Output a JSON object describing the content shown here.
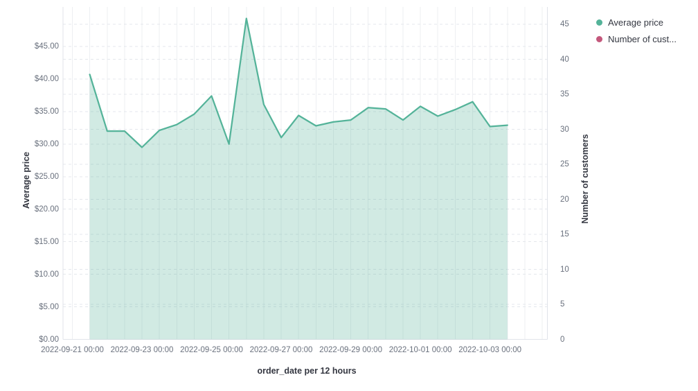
{
  "chart_data": {
    "type": "area",
    "title": "",
    "x": [
      "2022-09-21 12:00",
      "2022-09-22 00:00",
      "2022-09-22 12:00",
      "2022-09-23 00:00",
      "2022-09-23 12:00",
      "2022-09-24 00:00",
      "2022-09-24 12:00",
      "2022-09-25 00:00",
      "2022-09-25 12:00",
      "2022-09-26 00:00",
      "2022-09-26 12:00",
      "2022-09-27 00:00",
      "2022-09-27 12:00",
      "2022-09-28 00:00",
      "2022-09-28 12:00",
      "2022-09-29 00:00",
      "2022-09-29 12:00",
      "2022-09-30 00:00",
      "2022-09-30 12:00",
      "2022-10-01 00:00",
      "2022-10-01 12:00",
      "2022-10-02 00:00",
      "2022-10-02 12:00",
      "2022-10-03 00:00",
      "2022-10-03 12:00"
    ],
    "series": [
      {
        "name": "Average price",
        "axis": "left",
        "color": "#54b399",
        "values": [
          40.7,
          32.0,
          32.0,
          29.5,
          32.1,
          33.0,
          34.6,
          37.4,
          30.0,
          49.3,
          36.1,
          31.0,
          34.4,
          32.8,
          33.4,
          33.7,
          35.6,
          35.4,
          33.7,
          35.8,
          34.3,
          35.3,
          36.5,
          32.7,
          32.9
        ]
      },
      {
        "name": "Number of customers",
        "axis": "right",
        "color": "#c4587c",
        "values": [],
        "visible_in_plot": false
      }
    ],
    "left_axis": {
      "title": "Average price",
      "ticks": [
        "$0.00",
        "$5.00",
        "$10.00",
        "$15.00",
        "$20.00",
        "$25.00",
        "$30.00",
        "$35.00",
        "$40.00",
        "$45.00"
      ],
      "ylim": [
        0,
        51
      ]
    },
    "right_axis": {
      "title": "Number of customers",
      "ticks": [
        "0",
        "5",
        "10",
        "15",
        "20",
        "25",
        "30",
        "35",
        "40",
        "45"
      ],
      "ylim": [
        0,
        47.5
      ]
    },
    "x_axis": {
      "title": "order_date per 12 hours",
      "tick_labels": [
        "2022-09-21 00:00",
        "2022-09-23 00:00",
        "2022-09-25 00:00",
        "2022-09-27 00:00",
        "2022-09-29 00:00",
        "2022-10-01 00:00",
        "2022-10-03 00:00"
      ]
    },
    "legend": {
      "position": "top-right",
      "items": [
        {
          "label": "Average price",
          "color": "#54b399"
        },
        {
          "label": "Number of cust...",
          "color": "#c4587c"
        }
      ]
    },
    "grid": {
      "horizontal": "dashed",
      "vertical": "solid"
    },
    "colors": {
      "area_fill": "#54b399",
      "area_fill_opacity": 0.27,
      "line": "#54b399",
      "grid_dashed": "#e4e7ec",
      "grid_vertical": "#edeff2",
      "axis_line": "#e0e3e9",
      "tick_text": "#69707d",
      "title_text": "#343741"
    }
  }
}
